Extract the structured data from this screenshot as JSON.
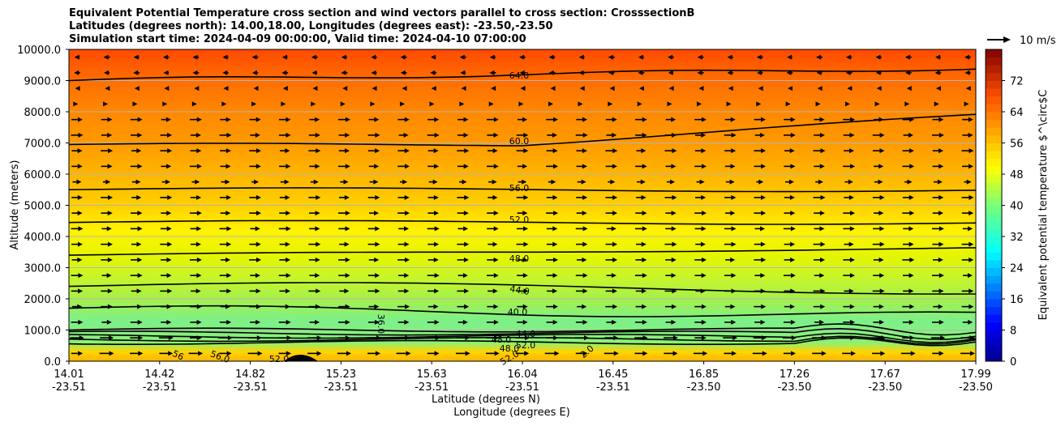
{
  "chart_data": {
    "type": "contour cross section",
    "title_lines": [
      "Equivalent Potential Temperature cross section and wind vectors parallel to cross section: CrosssectionB",
      "Latitudes (degrees north): 14.00,18.00, Longitudes (degrees east): -23.50,-23.50",
      "Simulation start time: 2024-04-09 00:00:00, Valid time: 2024-04-10 07:00:00"
    ],
    "ylabel": "Altitude (meters)",
    "xlabel_lat": "Latitude (degrees N)",
    "xlabel_lon": "Longitude (degrees E)",
    "ylim": [
      0,
      10000
    ],
    "y_ticks": [
      "0.0",
      "1000.0",
      "2000.0",
      "3000.0",
      "4000.0",
      "5000.0",
      "6000.0",
      "7000.0",
      "8000.0",
      "9000.0",
      "10000.0"
    ],
    "x_ticks_lat": [
      "14.01",
      "14.42",
      "14.82",
      "15.23",
      "15.63",
      "16.04",
      "16.45",
      "16.85",
      "17.26",
      "17.67",
      "17.99"
    ],
    "x_ticks_lon": [
      "-23.51",
      "-23.51",
      "-23.51",
      "-23.51",
      "-23.51",
      "-23.51",
      "-23.51",
      "-23.50",
      "-23.50",
      "-23.50",
      "-23.50"
    ],
    "colorbar_label": "Equivalent potential temperature $^\\circ$C",
    "colorbar_range": [
      0,
      80
    ],
    "colorbar_ticks": [
      "0",
      "8",
      "16",
      "24",
      "32",
      "40",
      "48",
      "56",
      "64",
      "72"
    ],
    "quiver_key": "10 m/s",
    "contour_labels": [
      "64.0",
      "60.0",
      "56.0",
      "52.0",
      "48.0",
      "44.0",
      "40.0",
      "36.0",
      "56",
      "56.0",
      "52.0",
      "48.0",
      "44.0",
      "48.0",
      "52.0",
      "52.0",
      "2.0"
    ],
    "contour_levels": [
      {
        "level": 64,
        "alt": 9000,
        "trend": "9000 m at south, rising to ~9400 m at north"
      },
      {
        "level": 60,
        "alt": 6950,
        "trend": "~7000 m, rising to ~7900 m at north"
      },
      {
        "level": 56,
        "alt": 5500
      },
      {
        "level": 52,
        "alt": 4450
      },
      {
        "level": 48,
        "alt": 3400,
        "trend": "rising to ~3600 m at north"
      },
      {
        "level": 44,
        "alt": 2400
      },
      {
        "level": 40,
        "alt": 1700
      }
    ],
    "wind": "mostly northward (+) below 8000 m, southward (-) above 8500 m"
  }
}
